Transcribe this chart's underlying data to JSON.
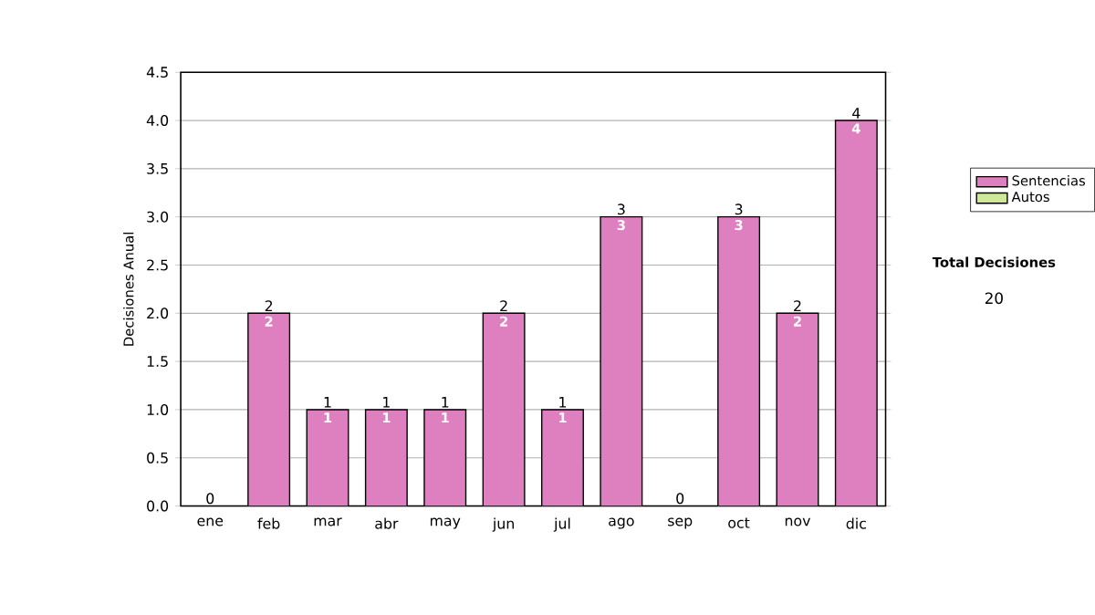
{
  "chart_data": {
    "type": "bar",
    "stacked": true,
    "ylabel": "Decisiones Anual",
    "categories": [
      "ene",
      "feb",
      "mar",
      "abr",
      "may",
      "jun",
      "jul",
      "ago",
      "sep",
      "oct",
      "nov",
      "dic"
    ],
    "series": [
      {
        "name": "Sentencias",
        "color": "#de7fbf",
        "values": [
          0,
          2,
          1,
          1,
          1,
          2,
          1,
          3,
          0,
          3,
          2,
          4
        ],
        "value_labels": [
          null,
          "2",
          "1",
          "1",
          "1",
          "2",
          "1",
          "3",
          null,
          "3",
          "2",
          "4"
        ]
      },
      {
        "name": "Autos",
        "color": "#cfe89a",
        "values": [
          0,
          0,
          0,
          0,
          0,
          0,
          0,
          0,
          0,
          0,
          0,
          0
        ]
      }
    ],
    "totals": [
      "0",
      "2",
      "1",
      "1",
      "1",
      "2",
      "1",
      "3",
      "0",
      "3",
      "2",
      "4"
    ],
    "ylim": [
      0,
      4.5
    ],
    "yticks": [
      {
        "value": 0,
        "label": "0.0"
      },
      {
        "value": 0.5,
        "label": "0.5"
      },
      {
        "value": 1,
        "label": "1.0"
      },
      {
        "value": 1.5,
        "label": "1.5"
      },
      {
        "value": 2,
        "label": "2.0"
      },
      {
        "value": 2.5,
        "label": "2.5"
      },
      {
        "value": 3,
        "label": "3.0"
      },
      {
        "value": 3.5,
        "label": "3.5"
      },
      {
        "value": 4,
        "label": "4.0"
      },
      {
        "value": 4.5,
        "label": "4.5"
      }
    ],
    "grid": "y",
    "legend": "right",
    "annotations": [
      "Total Decisiones",
      "20"
    ]
  }
}
